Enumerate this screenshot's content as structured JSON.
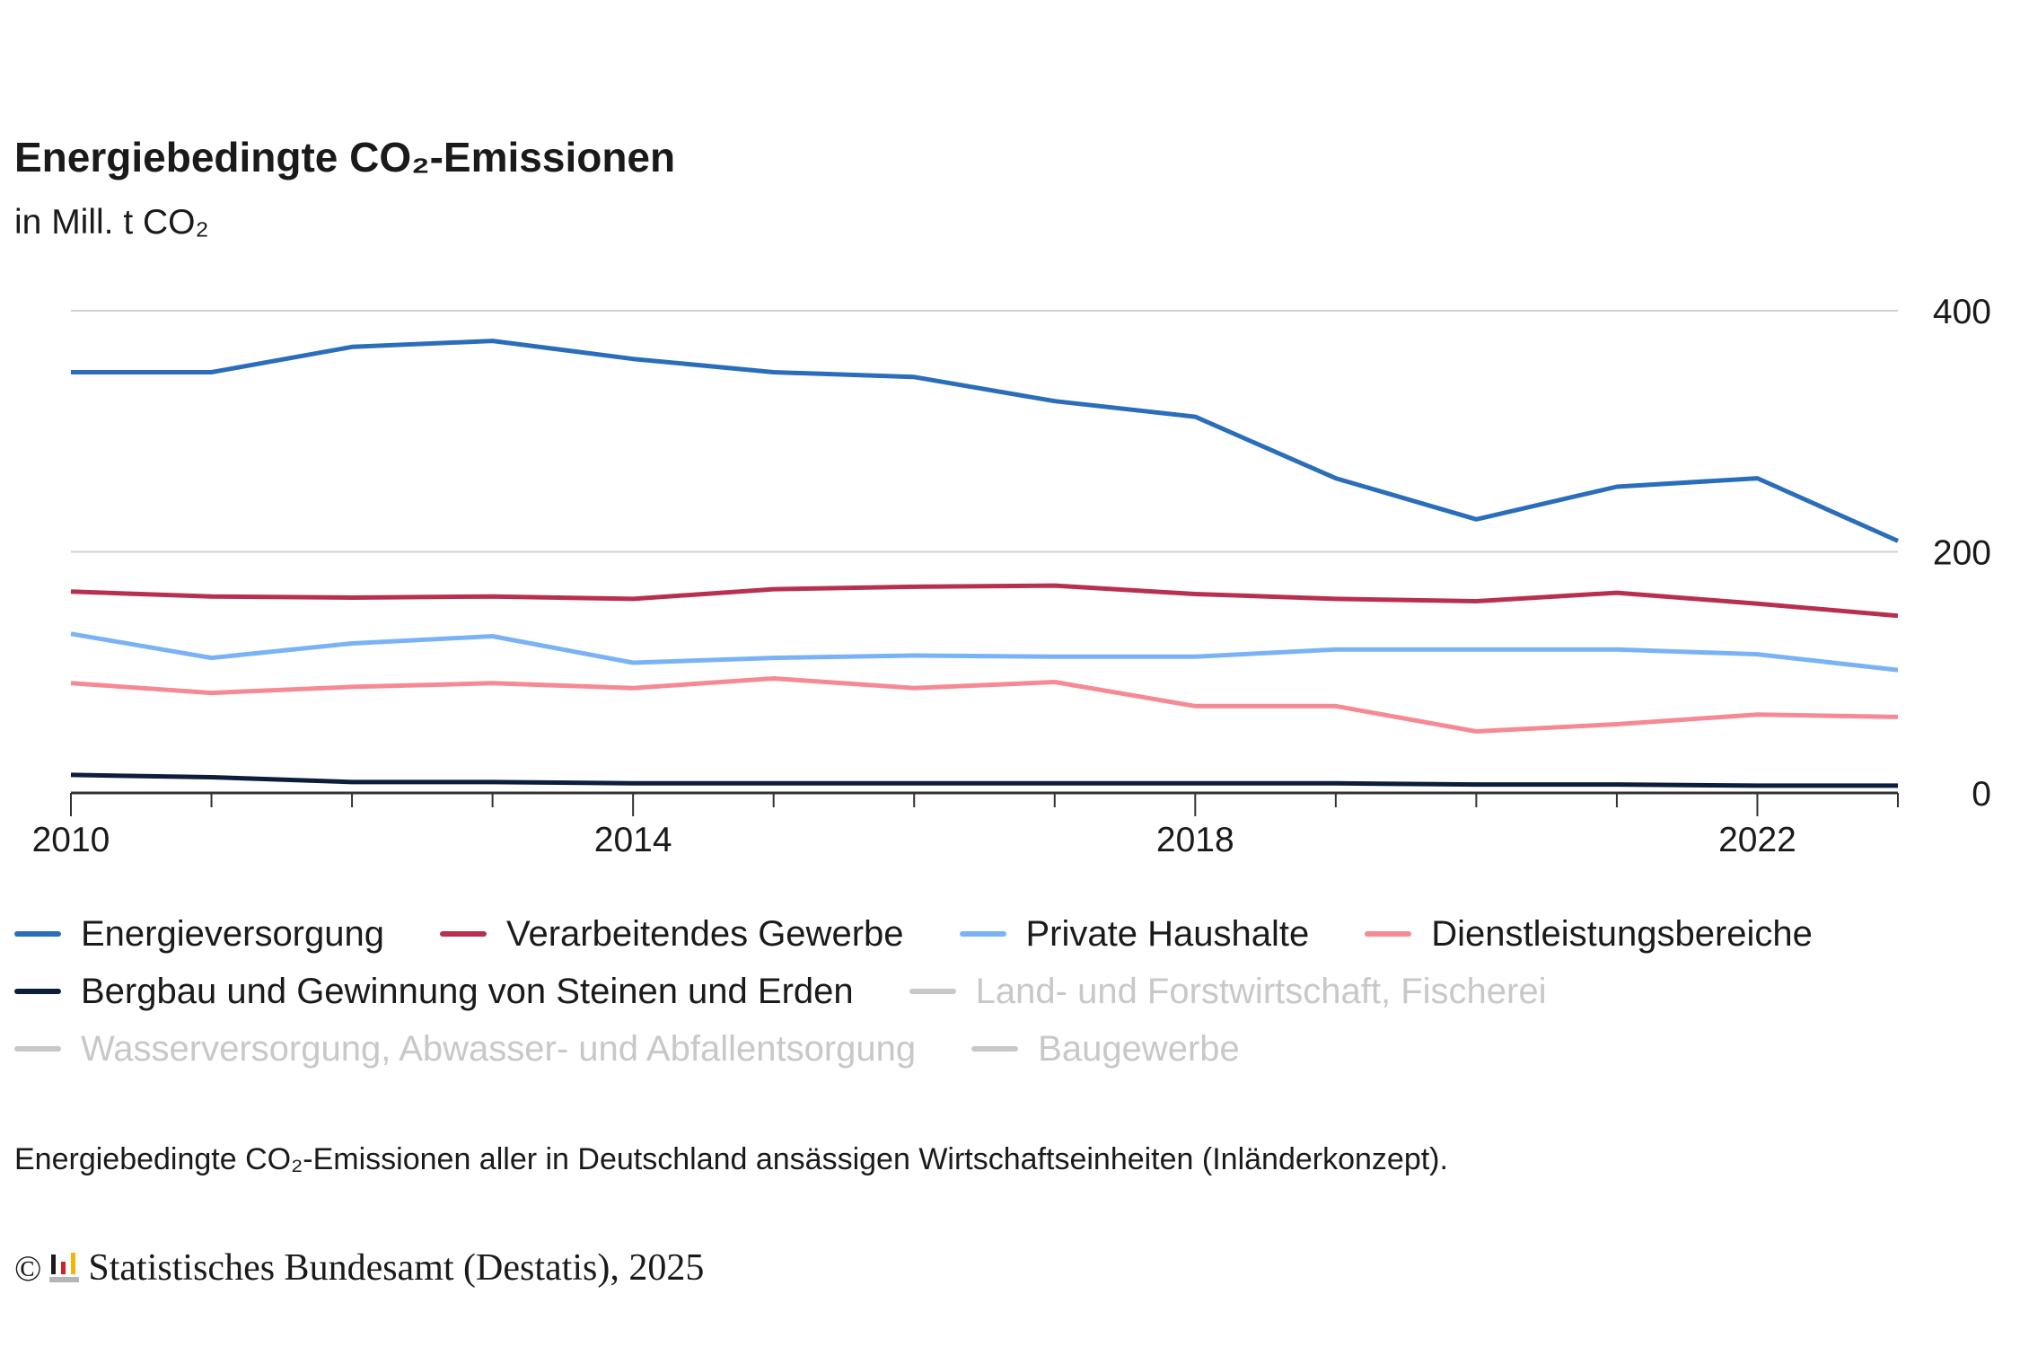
{
  "header": {
    "title": "Energiebedingte CO₂-Emissionen",
    "subtitle": "in Mill. t CO₂"
  },
  "chart_data": {
    "type": "line",
    "title": "Energiebedingte CO₂-Emissionen",
    "subtitle": "in Mill. t CO₂",
    "x": [
      2010,
      2011,
      2012,
      2013,
      2014,
      2015,
      2016,
      2017,
      2018,
      2019,
      2020,
      2021,
      2022,
      2023
    ],
    "x_ticks": [
      2010,
      2014,
      2018,
      2022
    ],
    "y_ticks": [
      0,
      200,
      400
    ],
    "ylim": [
      0,
      400
    ],
    "y_axis_side": "right",
    "grid": "horizontal",
    "legend_placement": "bottom",
    "series": [
      {
        "name": "Energieversorgung",
        "color": "#2a6ebb",
        "visible": true,
        "values": [
          349,
          349,
          370,
          375,
          360,
          349,
          345,
          325,
          312,
          261,
          227,
          254,
          261,
          209
        ]
      },
      {
        "name": "Verarbeitendes Gewerbe",
        "color": "#b8304f",
        "visible": true,
        "values": [
          167,
          163,
          162,
          163,
          161,
          169,
          171,
          172,
          165,
          161,
          159,
          166,
          157,
          147
        ]
      },
      {
        "name": "Private Haushalte",
        "color": "#7ab3f5",
        "visible": true,
        "values": [
          132,
          112,
          124,
          130,
          108,
          112,
          114,
          113,
          113,
          119,
          119,
          119,
          115,
          102
        ]
      },
      {
        "name": "Dienstleistungsbereiche",
        "color": "#f58a95",
        "visible": true,
        "values": [
          91,
          83,
          88,
          91,
          87,
          95,
          87,
          92,
          72,
          72,
          51,
          57,
          65,
          63
        ]
      },
      {
        "name": "Bergbau und Gewinnung von Steinen und Erden",
        "color": "#0d1e3d",
        "visible": true,
        "values": [
          15,
          13,
          9,
          9,
          8,
          8,
          8,
          8,
          8,
          8,
          7,
          7,
          6,
          6
        ]
      },
      {
        "name": "Land- und Forstwirtschaft, Fischerei",
        "color": "#c8c8c8",
        "visible": false
      },
      {
        "name": "Wasserversorgung, Abwasser- und Abfallentsorgung",
        "color": "#c8c8c8",
        "visible": false
      },
      {
        "name": "Baugewerbe",
        "color": "#c8c8c8",
        "visible": false
      }
    ]
  },
  "note": "Energiebedingte CO₂-Emissionen aller in Deutschland ansässigen Wirtschaftseinheiten (Inländerkonzept).",
  "footer": {
    "copyright": "©",
    "source": "Statistisches Bundesamt (Destatis), 2025",
    "logo": "destatis-logo"
  }
}
